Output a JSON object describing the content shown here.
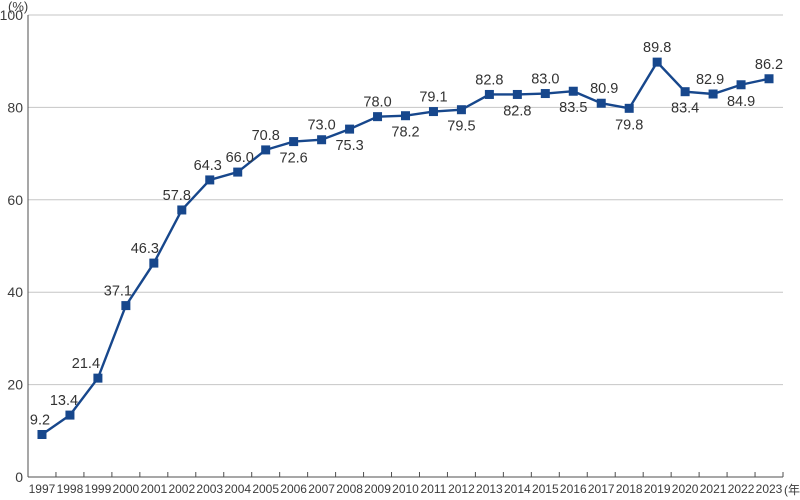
{
  "chart_data": {
    "type": "line",
    "title": "",
    "unit_label": "(%)",
    "year_suffix": "(年)",
    "categories": [
      "1997",
      "1998",
      "1999",
      "2000",
      "2001",
      "2002",
      "2003",
      "2004",
      "2005",
      "2006",
      "2007",
      "2008",
      "2009",
      "2010",
      "2011",
      "2012",
      "2013",
      "2014",
      "2015",
      "2016",
      "2017",
      "2018",
      "2019",
      "2020",
      "2021",
      "2022",
      "2023"
    ],
    "values": [
      9.2,
      13.4,
      21.4,
      37.1,
      46.3,
      57.8,
      64.3,
      66.0,
      70.8,
      72.6,
      73.0,
      75.3,
      78.0,
      78.2,
      79.1,
      79.5,
      82.8,
      82.8,
      83.0,
      83.5,
      80.9,
      79.8,
      89.8,
      83.4,
      82.9,
      84.9,
      86.2
    ],
    "value_labels": [
      "9.2",
      "13.4",
      "21.4",
      "37.1",
      "46.3",
      "57.8",
      "64.3",
      "66.0",
      "70.8",
      "72.6",
      "73.0",
      "75.3",
      "78.0",
      "78.2",
      "79.1",
      "79.5",
      "82.8",
      "82.8",
      "83.0",
      "83.5",
      "80.9",
      "79.8",
      "89.8",
      "83.4",
      "82.9",
      "84.9",
      "86.2"
    ],
    "value_label_positions": [
      "above",
      "above",
      "above",
      "above",
      "above",
      "above",
      "above",
      "above",
      "above",
      "below",
      "above",
      "below",
      "above",
      "below",
      "above",
      "below",
      "above",
      "below",
      "above",
      "below",
      "above",
      "below",
      "above",
      "below",
      "above",
      "below",
      "above"
    ],
    "value_label_dx": [
      -2,
      -6,
      -12,
      -8,
      -9,
      -5,
      -2,
      2,
      0,
      0,
      0,
      0,
      0,
      0,
      0,
      0,
      0,
      0,
      0,
      0,
      3,
      0,
      0,
      0,
      -3,
      0,
      0
    ],
    "ylim": [
      0,
      100
    ],
    "yticks": [
      0,
      20,
      40,
      60,
      80,
      100
    ],
    "grid": "horizontal",
    "legend": "none",
    "marker": "square",
    "colors": {
      "line": "#17478c",
      "marker": "#17478c",
      "grid": "#c6c6c6",
      "axis": "#4f4f4f",
      "tick_text": "#3c3c3c",
      "value_text": "#333333",
      "background": "#ffffff"
    }
  }
}
